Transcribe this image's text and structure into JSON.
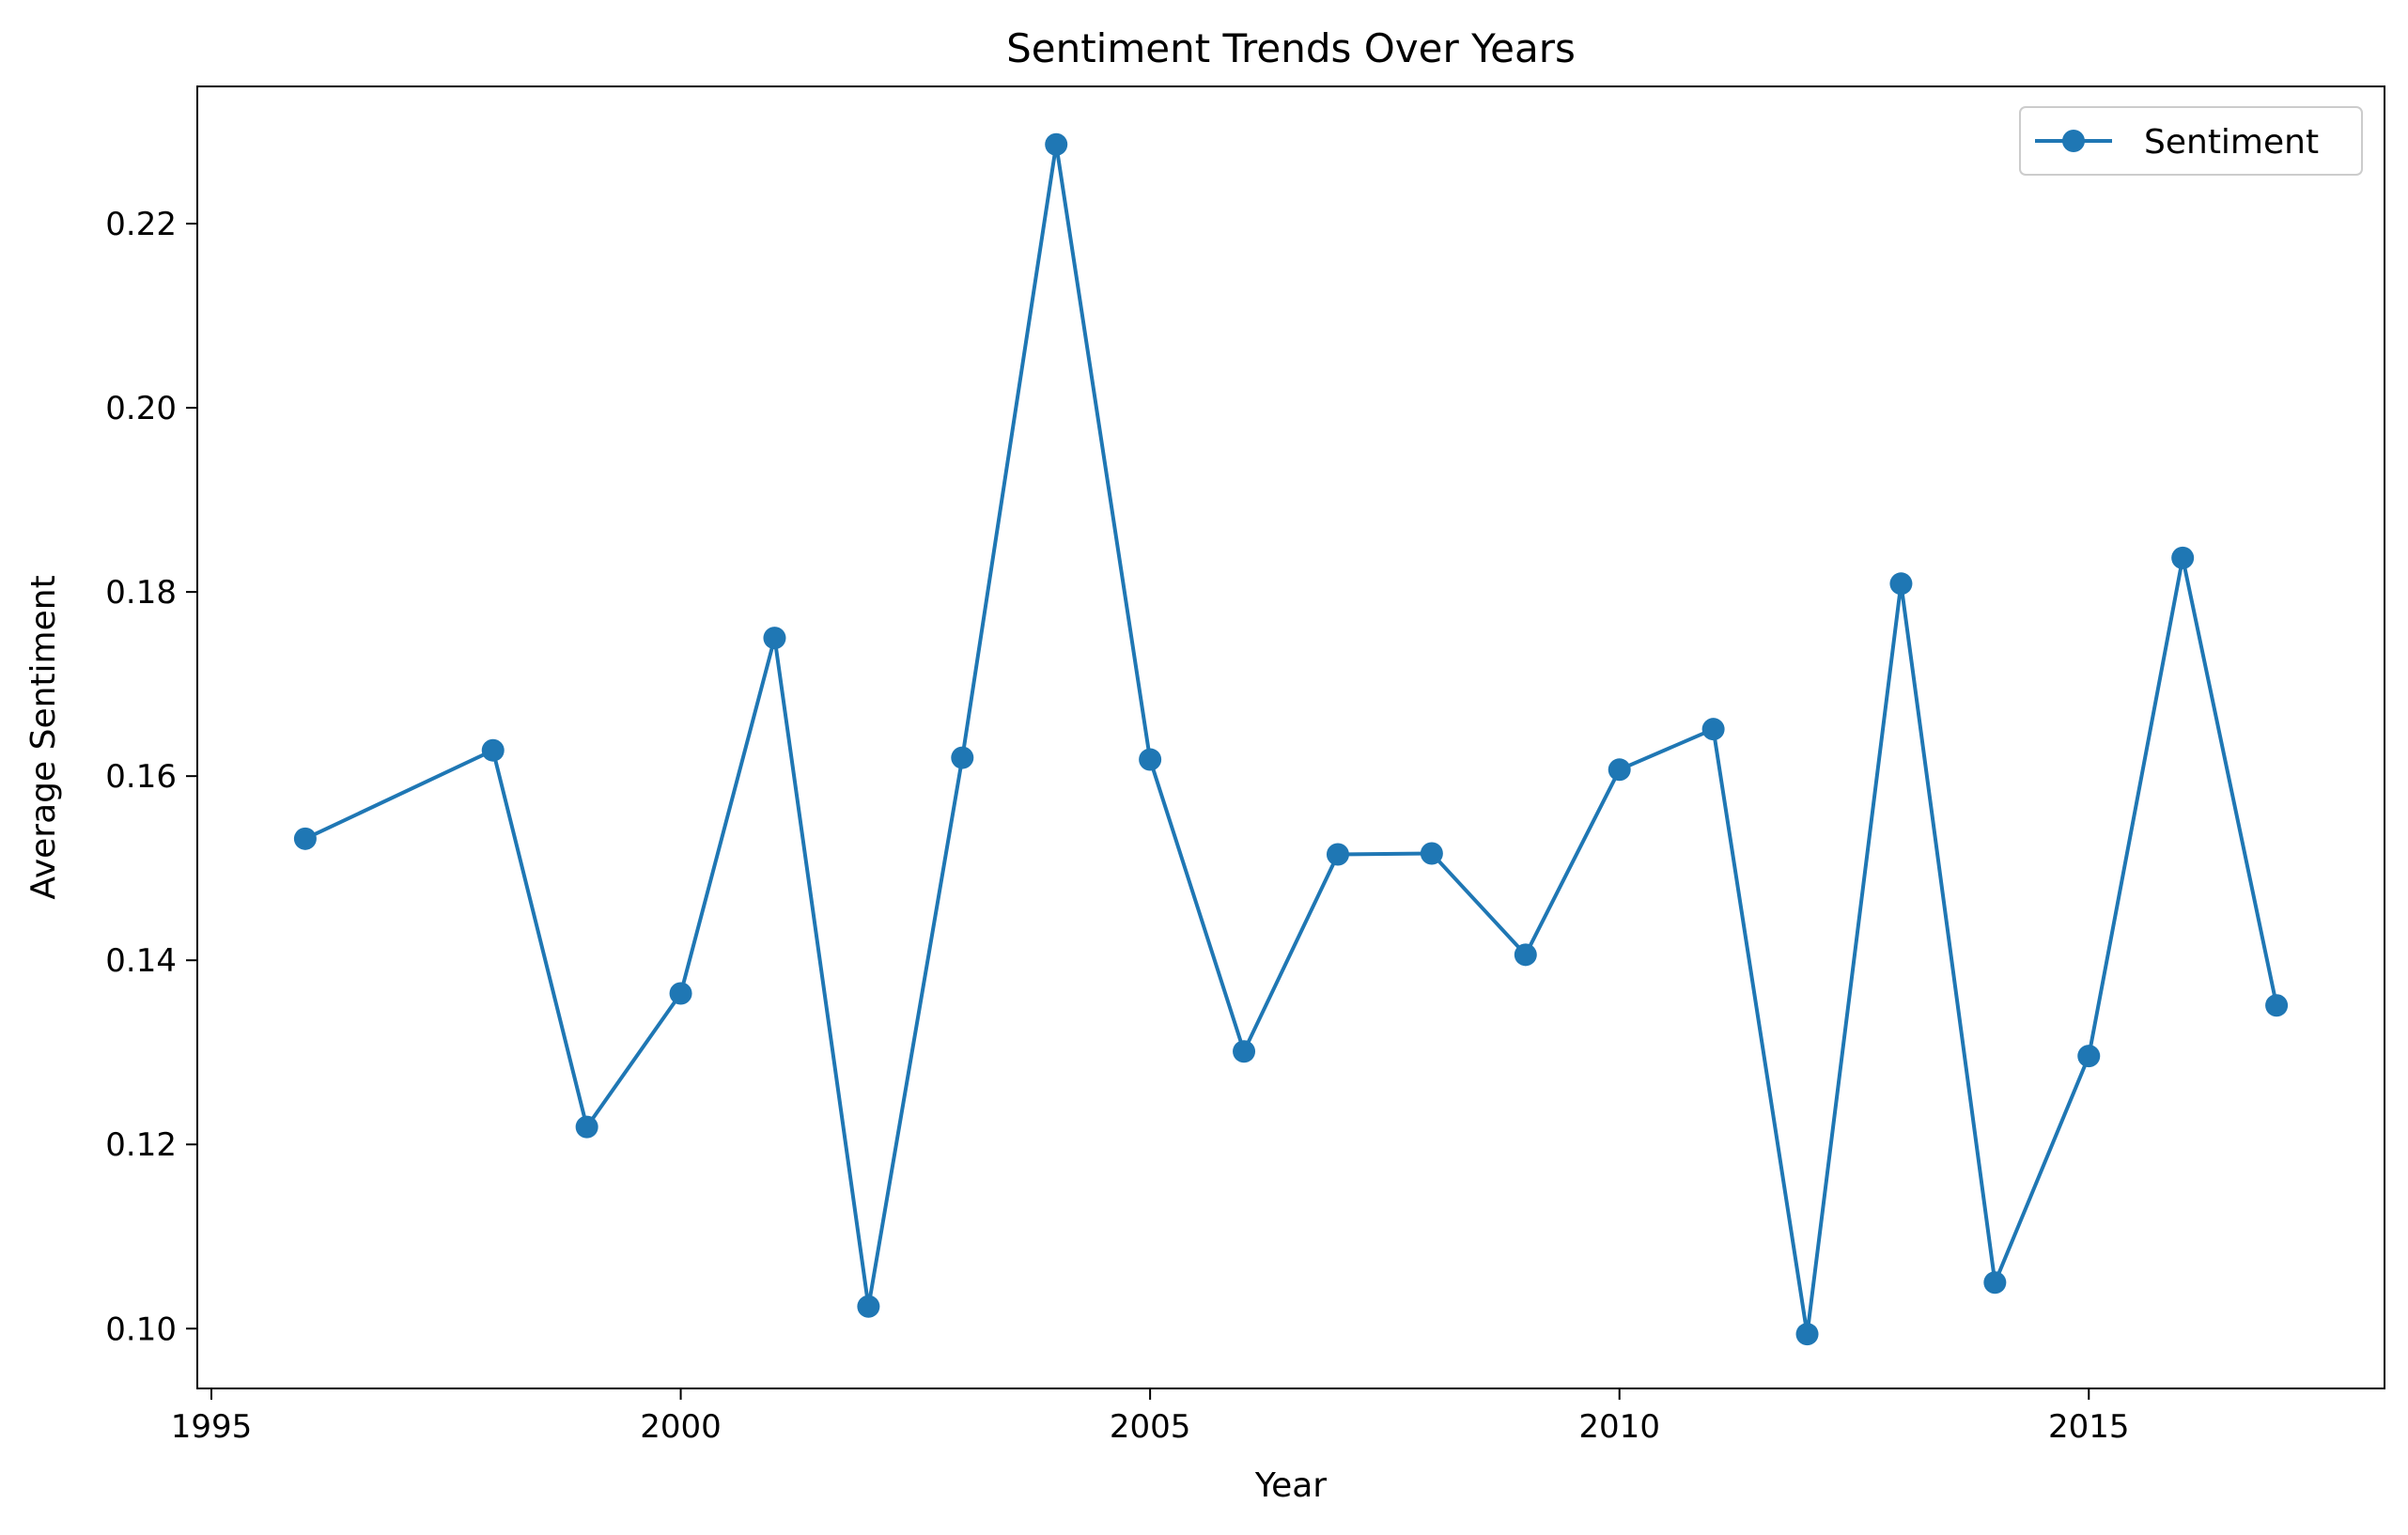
{
  "chart_data": {
    "type": "line",
    "title": "Sentiment Trends Over Years",
    "xlabel": "Year",
    "ylabel": "Average Sentiment",
    "xlim": [
      1994.85,
      2018.15
    ],
    "ylim": [
      0.0935,
      0.2349
    ],
    "xticks": [
      1995,
      2000,
      2005,
      2010,
      2015
    ],
    "xtick_labels": [
      "1995",
      "2000",
      "2005",
      "2010",
      "2015"
    ],
    "yticks": [
      0.1,
      0.12,
      0.14,
      0.16,
      0.18,
      0.2,
      0.22
    ],
    "ytick_labels": [
      "0.10",
      "0.12",
      "0.14",
      "0.16",
      "0.18",
      "0.20",
      "0.22"
    ],
    "grid": false,
    "legend_position": "top-right",
    "series": [
      {
        "name": "Sentiment",
        "color": "#1f77b4",
        "marker": "circle",
        "x": [
          1996,
          1998,
          1999,
          2000,
          2001,
          2002,
          2003,
          2004,
          2005,
          2006,
          2007,
          2008,
          2009,
          2010,
          2011,
          2012,
          2013,
          2014,
          2015,
          2016,
          2017
        ],
        "y": [
          0.1532,
          0.1628,
          0.1219,
          0.1364,
          0.175,
          0.1024,
          0.162,
          0.2286,
          0.1618,
          0.1301,
          0.1515,
          0.1516,
          0.1406,
          0.1607,
          0.1651,
          0.0994,
          0.1809,
          0.105,
          0.1296,
          0.1837,
          0.1351
        ]
      }
    ]
  }
}
